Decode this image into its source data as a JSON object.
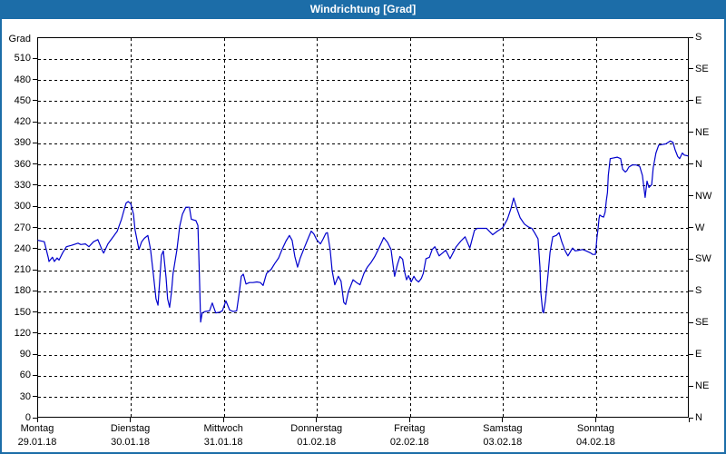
{
  "window": {
    "title": "Windrichtung [Grad]"
  },
  "colors": {
    "titlebar_bg": "#1C6DA8",
    "titlebar_text": "#FFFFFF",
    "frame_border": "#1C6DA8",
    "plot_border": "#000000",
    "grid": "#000000",
    "line": "#0000CD",
    "text": "#000000",
    "plot_bg": "#FFFFFF"
  },
  "chart_data": {
    "type": "line",
    "title": "Windrichtung [Grad]",
    "grid": true,
    "y_axis_left": {
      "label": "Grad",
      "min": 0,
      "max": 540,
      "tick_step": 30
    },
    "y_axis_right": {
      "unit": "compass",
      "labels": [
        {
          "deg": 0,
          "label": "N"
        },
        {
          "deg": 45,
          "label": "NE"
        },
        {
          "deg": 90,
          "label": "E"
        },
        {
          "deg": 135,
          "label": "SE"
        },
        {
          "deg": 180,
          "label": "S"
        },
        {
          "deg": 225,
          "label": "SW"
        },
        {
          "deg": 270,
          "label": "W"
        },
        {
          "deg": 315,
          "label": "NW"
        },
        {
          "deg": 360,
          "label": "N"
        },
        {
          "deg": 405,
          "label": "NE"
        },
        {
          "deg": 450,
          "label": "E"
        },
        {
          "deg": 495,
          "label": "SE"
        },
        {
          "deg": 540,
          "label": "S"
        }
      ]
    },
    "x_axis": {
      "hours_total": 168,
      "gridlines": "day_boundaries",
      "days": [
        {
          "weekday": "Montag",
          "date": "29.01.18"
        },
        {
          "weekday": "Dienstag",
          "date": "30.01.18"
        },
        {
          "weekday": "Mittwoch",
          "date": "31.01.18"
        },
        {
          "weekday": "Donnerstag",
          "date": "01.02.18"
        },
        {
          "weekday": "Freitag",
          "date": "02.02.18"
        },
        {
          "weekday": "Samstag",
          "date": "03.02.18"
        },
        {
          "weekday": "Sonntag",
          "date": "04.02.18"
        }
      ]
    },
    "series": [
      {
        "name": "Windrichtung",
        "unit": "Grad",
        "color": "#0000CD",
        "points_t_hours_deg": [
          [
            0,
            253
          ],
          [
            1.6,
            251
          ],
          [
            2.6,
            229
          ],
          [
            2.8,
            223
          ],
          [
            3.7,
            229
          ],
          [
            4.2,
            223
          ],
          [
            4.9,
            228
          ],
          [
            5.4,
            225
          ],
          [
            6.3,
            235
          ],
          [
            7.3,
            244
          ],
          [
            8.7,
            246
          ],
          [
            10.3,
            249
          ],
          [
            11,
            247
          ],
          [
            12.2,
            248
          ],
          [
            13.1,
            244
          ],
          [
            14.3,
            251
          ],
          [
            15.4,
            254
          ],
          [
            16.6,
            238
          ],
          [
            16.9,
            235
          ],
          [
            18,
            248
          ],
          [
            19.2,
            257
          ],
          [
            20.4,
            266
          ],
          [
            21.5,
            283
          ],
          [
            22.2,
            297
          ],
          [
            22.7,
            306
          ],
          [
            23.2,
            308
          ],
          [
            23.9,
            305
          ],
          [
            24.6,
            290
          ],
          [
            25,
            268
          ],
          [
            26,
            240
          ],
          [
            26.7,
            251
          ],
          [
            27.4,
            256
          ],
          [
            28.3,
            260
          ],
          [
            29,
            240
          ],
          [
            29.7,
            206
          ],
          [
            30.4,
            170
          ],
          [
            30.9,
            161
          ],
          [
            31.4,
            200
          ],
          [
            31.8,
            232
          ],
          [
            32.3,
            238
          ],
          [
            33,
            200
          ],
          [
            33.4,
            170
          ],
          [
            33.9,
            158
          ],
          [
            34.4,
            180
          ],
          [
            34.8,
            206
          ],
          [
            35.8,
            240
          ],
          [
            36.5,
            273
          ],
          [
            37.2,
            290
          ],
          [
            38.1,
            300
          ],
          [
            39,
            300
          ],
          [
            39.5,
            283
          ],
          [
            40.7,
            281
          ],
          [
            41.2,
            274
          ],
          [
            41.6,
            200
          ],
          [
            41.9,
            137
          ],
          [
            42.3,
            150
          ],
          [
            43,
            152
          ],
          [
            44.2,
            153
          ],
          [
            44.9,
            164
          ],
          [
            45.8,
            150
          ],
          [
            46.8,
            151
          ],
          [
            47.5,
            153
          ],
          [
            48.4,
            167
          ],
          [
            49.4,
            154
          ],
          [
            50.3,
            152
          ],
          [
            51.2,
            153
          ],
          [
            51.9,
            180
          ],
          [
            52.4,
            202
          ],
          [
            52.9,
            205
          ],
          [
            53.6,
            191
          ],
          [
            54.5,
            193
          ],
          [
            55.4,
            193
          ],
          [
            56.4,
            194
          ],
          [
            57.3,
            193
          ],
          [
            58,
            189
          ],
          [
            58.9,
            206
          ],
          [
            60.1,
            212
          ],
          [
            61,
            220
          ],
          [
            62,
            228
          ],
          [
            62.9,
            240
          ],
          [
            63.9,
            252
          ],
          [
            64.8,
            260
          ],
          [
            65.5,
            253
          ],
          [
            66.2,
            230
          ],
          [
            66.9,
            215
          ],
          [
            67.6,
            228
          ],
          [
            68.6,
            242
          ],
          [
            69.5,
            254
          ],
          [
            70.4,
            266
          ],
          [
            71.1,
            262
          ],
          [
            71.8,
            254
          ],
          [
            72.8,
            248
          ],
          [
            73.5,
            255
          ],
          [
            74.2,
            263
          ],
          [
            74.6,
            264
          ],
          [
            75.3,
            240
          ],
          [
            75.8,
            210
          ],
          [
            76.5,
            190
          ],
          [
            77.4,
            202
          ],
          [
            78.1,
            195
          ],
          [
            78.8,
            165
          ],
          [
            79.3,
            162
          ],
          [
            80,
            180
          ],
          [
            81.2,
            197
          ],
          [
            82.1,
            193
          ],
          [
            83,
            190
          ],
          [
            84,
            206
          ],
          [
            84.9,
            215
          ],
          [
            85.9,
            222
          ],
          [
            86.8,
            230
          ],
          [
            87.7,
            240
          ],
          [
            88.7,
            252
          ],
          [
            89.1,
            257
          ],
          [
            90.1,
            250
          ],
          [
            91,
            240
          ],
          [
            91.5,
            218
          ],
          [
            91.9,
            202
          ],
          [
            92.6,
            218
          ],
          [
            93.3,
            230
          ],
          [
            94,
            226
          ],
          [
            94.5,
            208
          ],
          [
            95,
            197
          ],
          [
            95.5,
            203
          ],
          [
            96.2,
            194
          ],
          [
            96.9,
            202
          ],
          [
            97.4,
            197
          ],
          [
            98.1,
            194
          ],
          [
            98.8,
            199
          ],
          [
            99.3,
            206
          ],
          [
            100,
            227
          ],
          [
            100.9,
            229
          ],
          [
            101.6,
            240
          ],
          [
            102.3,
            244
          ],
          [
            103.4,
            231
          ],
          [
            105.1,
            239
          ],
          [
            106.2,
            227
          ],
          [
            107.8,
            244
          ],
          [
            109,
            252
          ],
          [
            110.1,
            258
          ],
          [
            111.3,
            242
          ],
          [
            112.5,
            267
          ],
          [
            113.2,
            270
          ],
          [
            114.4,
            270
          ],
          [
            115.6,
            270
          ],
          [
            117.2,
            261
          ],
          [
            118.4,
            266
          ],
          [
            119.8,
            271
          ],
          [
            121,
            283
          ],
          [
            121.9,
            298
          ],
          [
            122.6,
            313
          ],
          [
            123.3,
            300
          ],
          [
            124.3,
            285
          ],
          [
            125.4,
            276
          ],
          [
            126.4,
            272
          ],
          [
            127.3,
            270
          ],
          [
            128,
            264
          ],
          [
            128.9,
            255
          ],
          [
            129.4,
            215
          ],
          [
            129.6,
            180
          ],
          [
            130.1,
            152
          ],
          [
            130.3,
            150
          ],
          [
            130.8,
            167
          ],
          [
            131.5,
            206
          ],
          [
            132,
            236
          ],
          [
            132.7,
            258
          ],
          [
            133.6,
            260
          ],
          [
            134.3,
            264
          ],
          [
            135,
            251
          ],
          [
            135.9,
            238
          ],
          [
            136.6,
            231
          ],
          [
            137.8,
            242
          ],
          [
            138.5,
            238
          ],
          [
            139.4,
            239
          ],
          [
            140.4,
            240
          ],
          [
            141.3,
            238
          ],
          [
            142.5,
            235
          ],
          [
            143,
            233
          ],
          [
            143.7,
            233
          ],
          [
            143.9,
            245
          ],
          [
            144.1,
            258
          ],
          [
            144.4,
            270
          ],
          [
            144.6,
            283
          ],
          [
            144.8,
            289
          ],
          [
            145.3,
            287
          ],
          [
            145.8,
            286
          ],
          [
            146.2,
            293
          ],
          [
            146.5,
            309
          ],
          [
            146.8,
            321
          ],
          [
            147,
            345
          ],
          [
            147.5,
            369
          ],
          [
            148.4,
            370
          ],
          [
            149.3,
            371
          ],
          [
            150.2,
            369
          ],
          [
            150.7,
            354
          ],
          [
            151.4,
            350
          ],
          [
            151.8,
            352
          ],
          [
            152.3,
            357
          ],
          [
            153.2,
            360
          ],
          [
            154.2,
            360
          ],
          [
            155.1,
            358
          ],
          [
            155.8,
            345
          ],
          [
            156.5,
            314
          ],
          [
            157,
            337
          ],
          [
            157.5,
            328
          ],
          [
            158.2,
            332
          ],
          [
            158.6,
            356
          ],
          [
            159.3,
            377
          ],
          [
            160,
            388
          ],
          [
            160.9,
            389
          ],
          [
            161.9,
            390
          ],
          [
            163,
            394
          ],
          [
            163.7,
            392
          ],
          [
            164.2,
            382
          ],
          [
            164.9,
            372
          ],
          [
            165.4,
            369
          ],
          [
            166.1,
            377
          ],
          [
            166.6,
            374
          ],
          [
            167.5,
            373
          ]
        ]
      }
    ]
  }
}
